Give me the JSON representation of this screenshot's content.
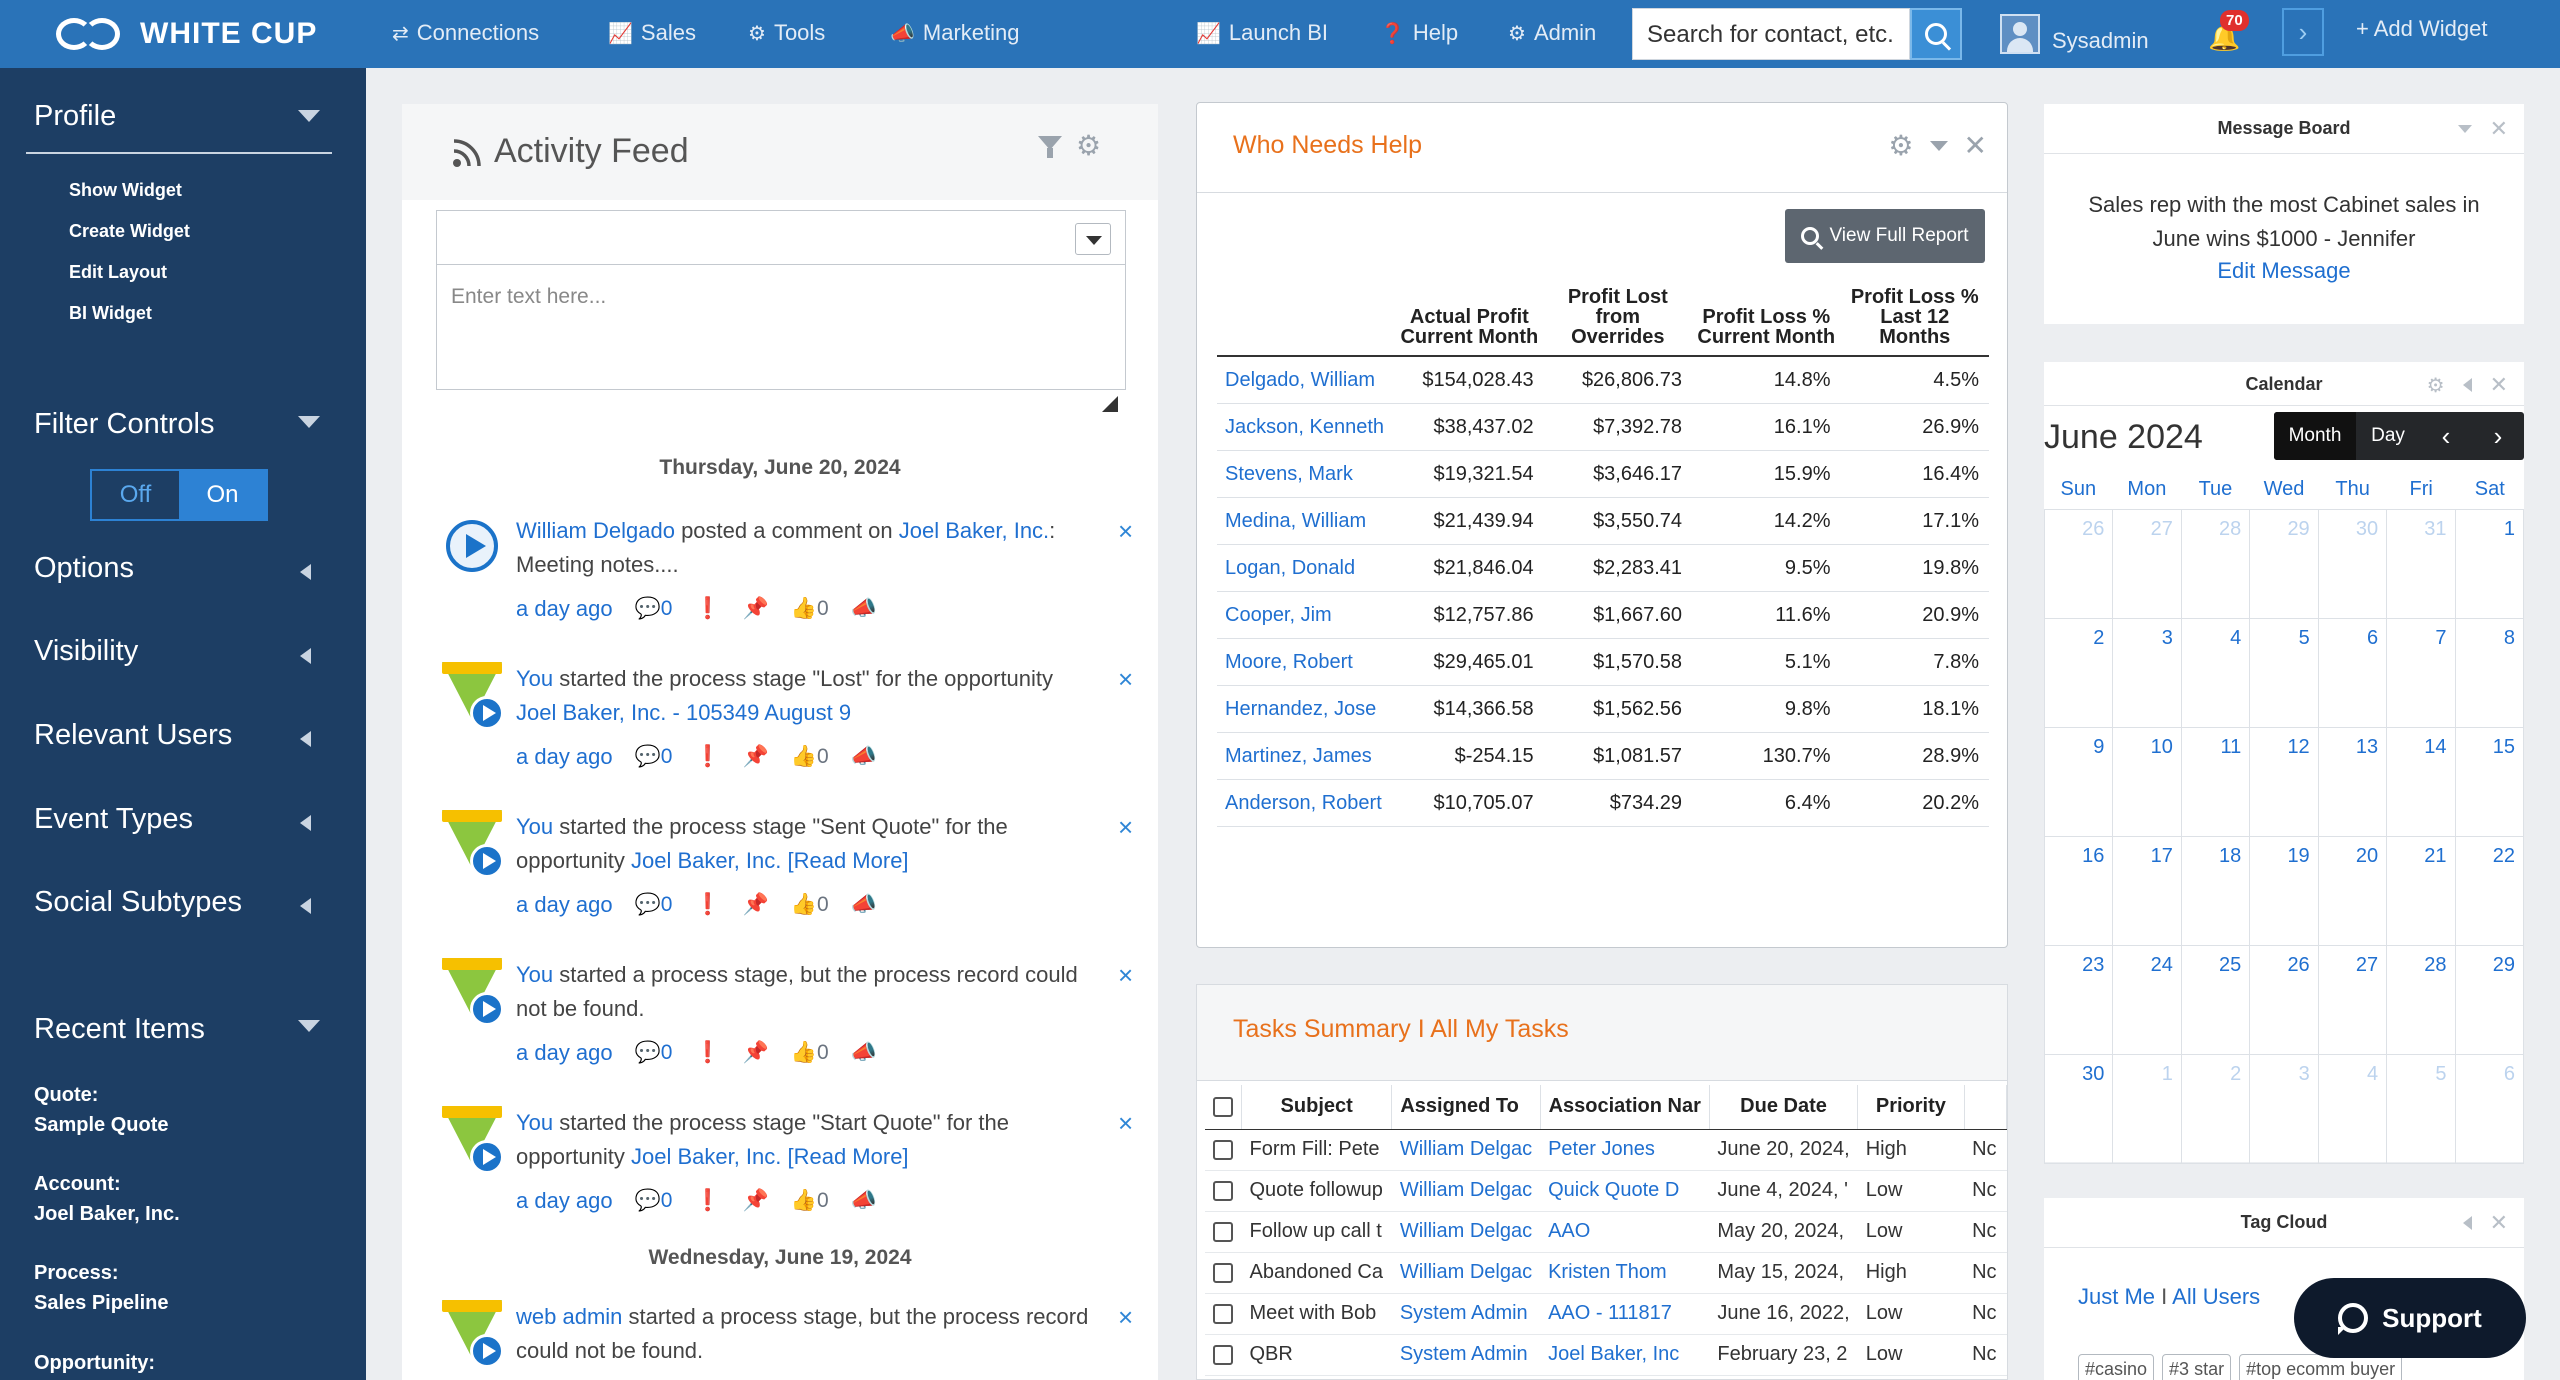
{
  "brand": {
    "name": "WHITE CUP"
  },
  "nav": {
    "items": [
      {
        "label": "Connections",
        "icon": "connections-icon"
      },
      {
        "label": "Sales",
        "icon": "chart-icon"
      },
      {
        "label": "Tools",
        "icon": "gears-icon"
      },
      {
        "label": "Marketing",
        "icon": "megaphone-icon"
      },
      {
        "label": "Launch BI",
        "icon": "chart-icon"
      },
      {
        "label": "Help",
        "icon": "help-icon"
      },
      {
        "label": "Admin",
        "icon": "gear-icon"
      }
    ],
    "search_value": "Search for contact, etc.",
    "user": "Sysadmin",
    "notifications": "70",
    "add_widget": "+ Add Widget"
  },
  "sidebar": {
    "profile": {
      "title": "Profile",
      "links": [
        "Show Widget",
        "Create Widget",
        "Edit Layout",
        "BI Widget"
      ]
    },
    "filter_controls": {
      "title": "Filter Controls",
      "off": "Off",
      "on": "On"
    },
    "sections": [
      "Options",
      "Visibility",
      "Relevant Users",
      "Event Types",
      "Social Subtypes"
    ],
    "recent": {
      "title": "Recent Items",
      "items": [
        {
          "type": "Quote:",
          "name": "Sample Quote"
        },
        {
          "type": "Account:",
          "name": "Joel Baker, Inc."
        },
        {
          "type": "Process:",
          "name": "Sales Pipeline"
        },
        {
          "type": "Opportunity:",
          "name": ""
        }
      ]
    }
  },
  "activity_feed": {
    "title": "Activity Feed",
    "placeholder": "Enter text here...",
    "dates": [
      "Thursday, June 20, 2024",
      "Wednesday, June 19, 2024"
    ],
    "items": [
      {
        "actor": "William Delgado",
        "pre": " posted a comment on ",
        "link": "Joel Baker, Inc.",
        "post": ": Meeting notes....",
        "time": "a day ago",
        "comments": "0",
        "likes": "0"
      },
      {
        "actor": "You",
        "pre": " started the process stage \"Lost\" for the opportunity ",
        "link": "Joel Baker, Inc. - 105349 August 9",
        "post": "",
        "time": "a day ago",
        "comments": "0",
        "likes": "0"
      },
      {
        "actor": "You",
        "pre": " started the process stage \"Sent Quote\" for the opportunity ",
        "link": "Joel Baker, Inc. [Read More]",
        "post": "",
        "time": "a day ago",
        "comments": "0",
        "likes": "0"
      },
      {
        "actor": "You",
        "pre": " started a process stage, but the process record could not be found.",
        "link": "",
        "post": "",
        "time": "a day ago",
        "comments": "0",
        "likes": "0"
      },
      {
        "actor": "You",
        "pre": " started the process stage \"Start Quote\" for the opportunity ",
        "link": "Joel Baker, Inc. [Read More]",
        "post": "",
        "time": "a day ago",
        "comments": "0",
        "likes": "0"
      },
      {
        "actor": "web admin",
        "pre": " started a process stage, but the process record could not be found.",
        "link": "",
        "post": "",
        "time": "",
        "comments": "",
        "likes": ""
      }
    ]
  },
  "who_needs_help": {
    "title": "Who Needs Help",
    "report_button": "View Full Report",
    "columns": [
      "",
      "Actual Profit Current Month",
      "Profit Lost from Overrides",
      "Profit Loss % Current Month",
      "Profit Loss % Last 12 Months"
    ],
    "rows": [
      [
        "Delgado, William",
        "$154,028.43",
        "$26,806.73",
        "14.8%",
        "4.5%"
      ],
      [
        "Jackson, Kenneth",
        "$38,437.02",
        "$7,392.78",
        "16.1%",
        "26.9%"
      ],
      [
        "Stevens, Mark",
        "$19,321.54",
        "$3,646.17",
        "15.9%",
        "16.4%"
      ],
      [
        "Medina, William",
        "$21,439.94",
        "$3,550.74",
        "14.2%",
        "17.1%"
      ],
      [
        "Logan, Donald",
        "$21,846.04",
        "$2,283.41",
        "9.5%",
        "19.8%"
      ],
      [
        "Cooper, Jim",
        "$12,757.86",
        "$1,667.60",
        "11.6%",
        "20.9%"
      ],
      [
        "Moore, Robert",
        "$29,465.01",
        "$1,570.58",
        "5.1%",
        "7.8%"
      ],
      [
        "Hernandez, Jose",
        "$14,366.58",
        "$1,562.56",
        "9.8%",
        "18.1%"
      ],
      [
        "Martinez, James",
        "$-254.15",
        "$1,081.57",
        "130.7%",
        "28.9%"
      ],
      [
        "Anderson, Robert",
        "$10,705.07",
        "$734.29",
        "6.4%",
        "20.2%"
      ]
    ]
  },
  "tasks": {
    "title": "Tasks Summary I All My Tasks",
    "columns": [
      "Subject",
      "Assigned To",
      "Association Nar",
      "Due Date",
      "Priority",
      ""
    ],
    "rows": [
      [
        "Form Fill: Pete",
        "William Delgac",
        "Peter Jones",
        "June 20, 2024,",
        "High",
        "Nc"
      ],
      [
        "Quote followup",
        "William Delgac",
        "Quick Quote D",
        "June 4, 2024, '",
        "Low",
        "Nc"
      ],
      [
        "Follow up call t",
        "William Delgac",
        "AAO",
        "May 20, 2024,",
        "Low",
        "Nc"
      ],
      [
        "Abandoned Ca",
        "William Delgac",
        "Kristen Thom",
        "May 15, 2024,",
        "High",
        "Nc"
      ],
      [
        "Meet with Bob",
        "System Admin",
        "AAO - 111817",
        "June 16, 2022,",
        "Low",
        "Nc"
      ],
      [
        "QBR",
        "System Admin",
        "Joel Baker, Inc",
        "February 23, 2",
        "Low",
        "Nc"
      ]
    ]
  },
  "message_board": {
    "title": "Message Board",
    "message": "Sales rep with the most Cabinet sales in June wins $1000 - Jennifer",
    "edit": "Edit Message"
  },
  "calendar": {
    "title": "Calendar",
    "month": "June 2024",
    "views": [
      "Month",
      "Day"
    ],
    "dow": [
      "Sun",
      "Mon",
      "Tue",
      "Wed",
      "Thu",
      "Fri",
      "Sat"
    ],
    "weeks": [
      [
        [
          "26",
          1
        ],
        [
          "27",
          1
        ],
        [
          "28",
          1
        ],
        [
          "29",
          1
        ],
        [
          "30",
          1
        ],
        [
          "31",
          1
        ],
        [
          "1",
          0
        ]
      ],
      [
        [
          "2",
          0
        ],
        [
          "3",
          0
        ],
        [
          "4",
          0
        ],
        [
          "5",
          0
        ],
        [
          "6",
          0
        ],
        [
          "7",
          0
        ],
        [
          "8",
          0
        ]
      ],
      [
        [
          "9",
          0
        ],
        [
          "10",
          0
        ],
        [
          "11",
          0
        ],
        [
          "12",
          0
        ],
        [
          "13",
          0
        ],
        [
          "14",
          0
        ],
        [
          "15",
          0
        ]
      ],
      [
        [
          "16",
          0
        ],
        [
          "17",
          0
        ],
        [
          "18",
          0
        ],
        [
          "19",
          0
        ],
        [
          "20",
          0
        ],
        [
          "21",
          0
        ],
        [
          "22",
          0
        ]
      ],
      [
        [
          "23",
          0
        ],
        [
          "24",
          0
        ],
        [
          "25",
          0
        ],
        [
          "26",
          0
        ],
        [
          "27",
          0
        ],
        [
          "28",
          0
        ],
        [
          "29",
          0
        ]
      ],
      [
        [
          "30",
          0
        ],
        [
          "1",
          1
        ],
        [
          "2",
          1
        ],
        [
          "3",
          1
        ],
        [
          "4",
          1
        ],
        [
          "5",
          1
        ],
        [
          "6",
          1
        ]
      ]
    ]
  },
  "tag_cloud": {
    "title": "Tag Cloud",
    "filter_me": "Just Me",
    "filter_sep": " I ",
    "filter_all": "All Users",
    "tags": [
      "#casino",
      "#3 star",
      "#top ecomm buyer"
    ]
  },
  "support": {
    "label": "Support"
  }
}
